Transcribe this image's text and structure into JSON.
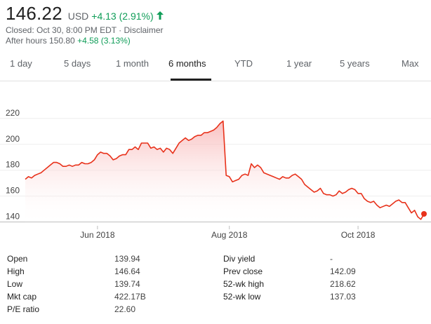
{
  "quote": {
    "price": "146.22",
    "currency": "USD",
    "change": "+4.13 (2.91%)",
    "closed": "Closed: Oct 30, 8:00 PM EDT · Disclaimer",
    "after_hours_label": "After hours 150.80",
    "after_hours_change": "+4.58 (3.13%)"
  },
  "tabs": [
    "1 day",
    "5 days",
    "1 month",
    "6 months",
    "YTD",
    "1 year",
    "5 years",
    "Max"
  ],
  "active_tab": "6 months",
  "colors": {
    "positive": "#0f9d58",
    "line": "#e8311a",
    "fill": "#fde0e0"
  },
  "chart_data": {
    "type": "area",
    "ylim": [
      137,
      227
    ],
    "yticks": [
      140,
      160,
      180,
      200,
      220
    ],
    "xticks": [
      {
        "label": "Jun 2018",
        "i": 23
      },
      {
        "label": "Aug 2018",
        "i": 65
      },
      {
        "label": "Oct 2018",
        "i": 106
      }
    ],
    "values": [
      173,
      175,
      174,
      176,
      177,
      178,
      180,
      182,
      184,
      186,
      186,
      185,
      183,
      183,
      184,
      183,
      184,
      184,
      186,
      185,
      185,
      186,
      188,
      192,
      194,
      193,
      193,
      191,
      188,
      189,
      191,
      192,
      192,
      196,
      196,
      198,
      196,
      201,
      201,
      201,
      197,
      198,
      196,
      197,
      194,
      197,
      196,
      193,
      197,
      201,
      203,
      205,
      203,
      204,
      206,
      207,
      207,
      209,
      209,
      210,
      211,
      213,
      216,
      218,
      176,
      175,
      171,
      172,
      173,
      176,
      177,
      176,
      185,
      182,
      184,
      182,
      178,
      177,
      176,
      175,
      174,
      173,
      175,
      174,
      174,
      176,
      177,
      175,
      173,
      169,
      167,
      165,
      163,
      164,
      166,
      162,
      161,
      161,
      160,
      161,
      164,
      162,
      163,
      165,
      166,
      165,
      162,
      162,
      158,
      156,
      155,
      156,
      153,
      151,
      152,
      153,
      152,
      154,
      156,
      157,
      155,
      155,
      151,
      147,
      149,
      144,
      142,
      146
    ],
    "last_dot": 146.22
  },
  "stats": {
    "left": [
      {
        "label": "Open",
        "value": "139.94"
      },
      {
        "label": "High",
        "value": "146.64"
      },
      {
        "label": "Low",
        "value": "139.74"
      },
      {
        "label": "Mkt cap",
        "value": "422.17B"
      },
      {
        "label": "P/E ratio",
        "value": "22.60"
      }
    ],
    "right": [
      {
        "label": "Div yield",
        "value": "-"
      },
      {
        "label": "Prev close",
        "value": "142.09"
      },
      {
        "label": "52-wk high",
        "value": "218.62"
      },
      {
        "label": "52-wk low",
        "value": "137.03"
      }
    ]
  }
}
